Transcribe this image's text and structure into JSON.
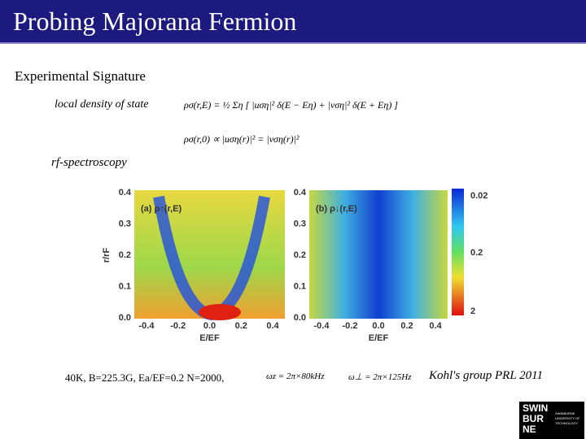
{
  "header": {
    "title": "Probing Majorana Fermion"
  },
  "section": "Experimental Signature",
  "items": [
    {
      "label": "local density of state",
      "formulas": [
        "ρσ(r,E) = ½ Ση [ |uση|² δ(E − Eη) + |vση|² δ(E + Eη) ]",
        "ρσ(r,0) ∝ |uση(r)|² = |vση(r)|²"
      ]
    },
    {
      "label": "rf-spectroscopy"
    }
  ],
  "figure": {
    "panels": [
      {
        "label": "(a) ρ↑(r,E)"
      },
      {
        "label": "(b) ρ↓(r,E)"
      }
    ],
    "x_ticks": [
      "-0.4",
      "-0.2",
      "0.0",
      "0.2",
      "0.4"
    ],
    "y_ticks": [
      "0.4",
      "0.3",
      "0.2",
      "0.1",
      "0.0"
    ],
    "x_label": "E/EF",
    "y_label": "r/rF",
    "colorbar_ticks": [
      "0.02",
      "0.2",
      "2"
    ]
  },
  "footer": {
    "parameters": "40K, B=225.3G, Ea/EF=0.2 N=2000,",
    "frequencies": [
      "ωz = 2π×80kHz",
      "ω⊥ = 2π×125Hz"
    ],
    "citation": "Kohl's group PRL 2011",
    "logo": [
      "SWIN",
      "BUR",
      "NE"
    ],
    "logo_caption": "SWINBURNE UNIVERSITY OF TECHNOLOGY"
  }
}
